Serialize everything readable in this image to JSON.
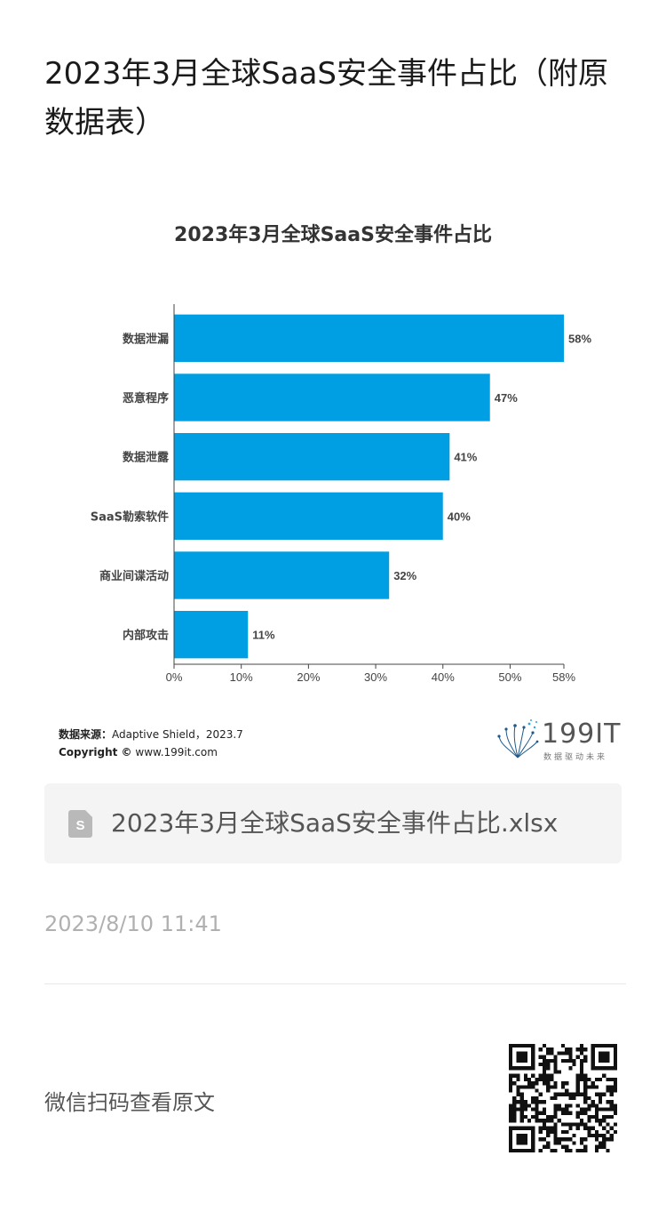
{
  "article": {
    "title": "2023年3月全球SaaS安全事件占比（附原数据表）"
  },
  "chart_data": {
    "type": "bar",
    "orientation": "horizontal",
    "title": "2023年3月全球SaaS安全事件占比",
    "categories": [
      "数据泄漏",
      "恶意程序",
      "数据泄露",
      "SaaS勒索软件",
      "商业间谍活动",
      "内部攻击"
    ],
    "values": [
      58,
      47,
      41,
      40,
      32,
      11
    ],
    "value_labels": [
      "58%",
      "47%",
      "41%",
      "40%",
      "32%",
      "11%"
    ],
    "x_ticks": [
      "0%",
      "10%",
      "20%",
      "30%",
      "40%",
      "50%",
      "58%"
    ],
    "x_tick_values": [
      0,
      10,
      20,
      30,
      40,
      50,
      58
    ],
    "xlim": [
      0,
      58
    ],
    "bar_color": "#009fe3",
    "grid": false
  },
  "source": {
    "label": "数据来源：",
    "value": "Adaptive Shield，2023.7",
    "copyright_label": "Copyright ©",
    "copyright_value": "www.199it.com"
  },
  "logo": {
    "text": "199IT",
    "tagline": "数据驱动未来"
  },
  "file": {
    "icon": "spreadsheet-file-icon",
    "name": "2023年3月全球SaaS安全事件占比.xlsx"
  },
  "meta": {
    "timestamp": "2023/8/10 11:41"
  },
  "footer": {
    "scan_text": "微信扫码查看原文",
    "qr_icon": "qr-code-icon"
  }
}
